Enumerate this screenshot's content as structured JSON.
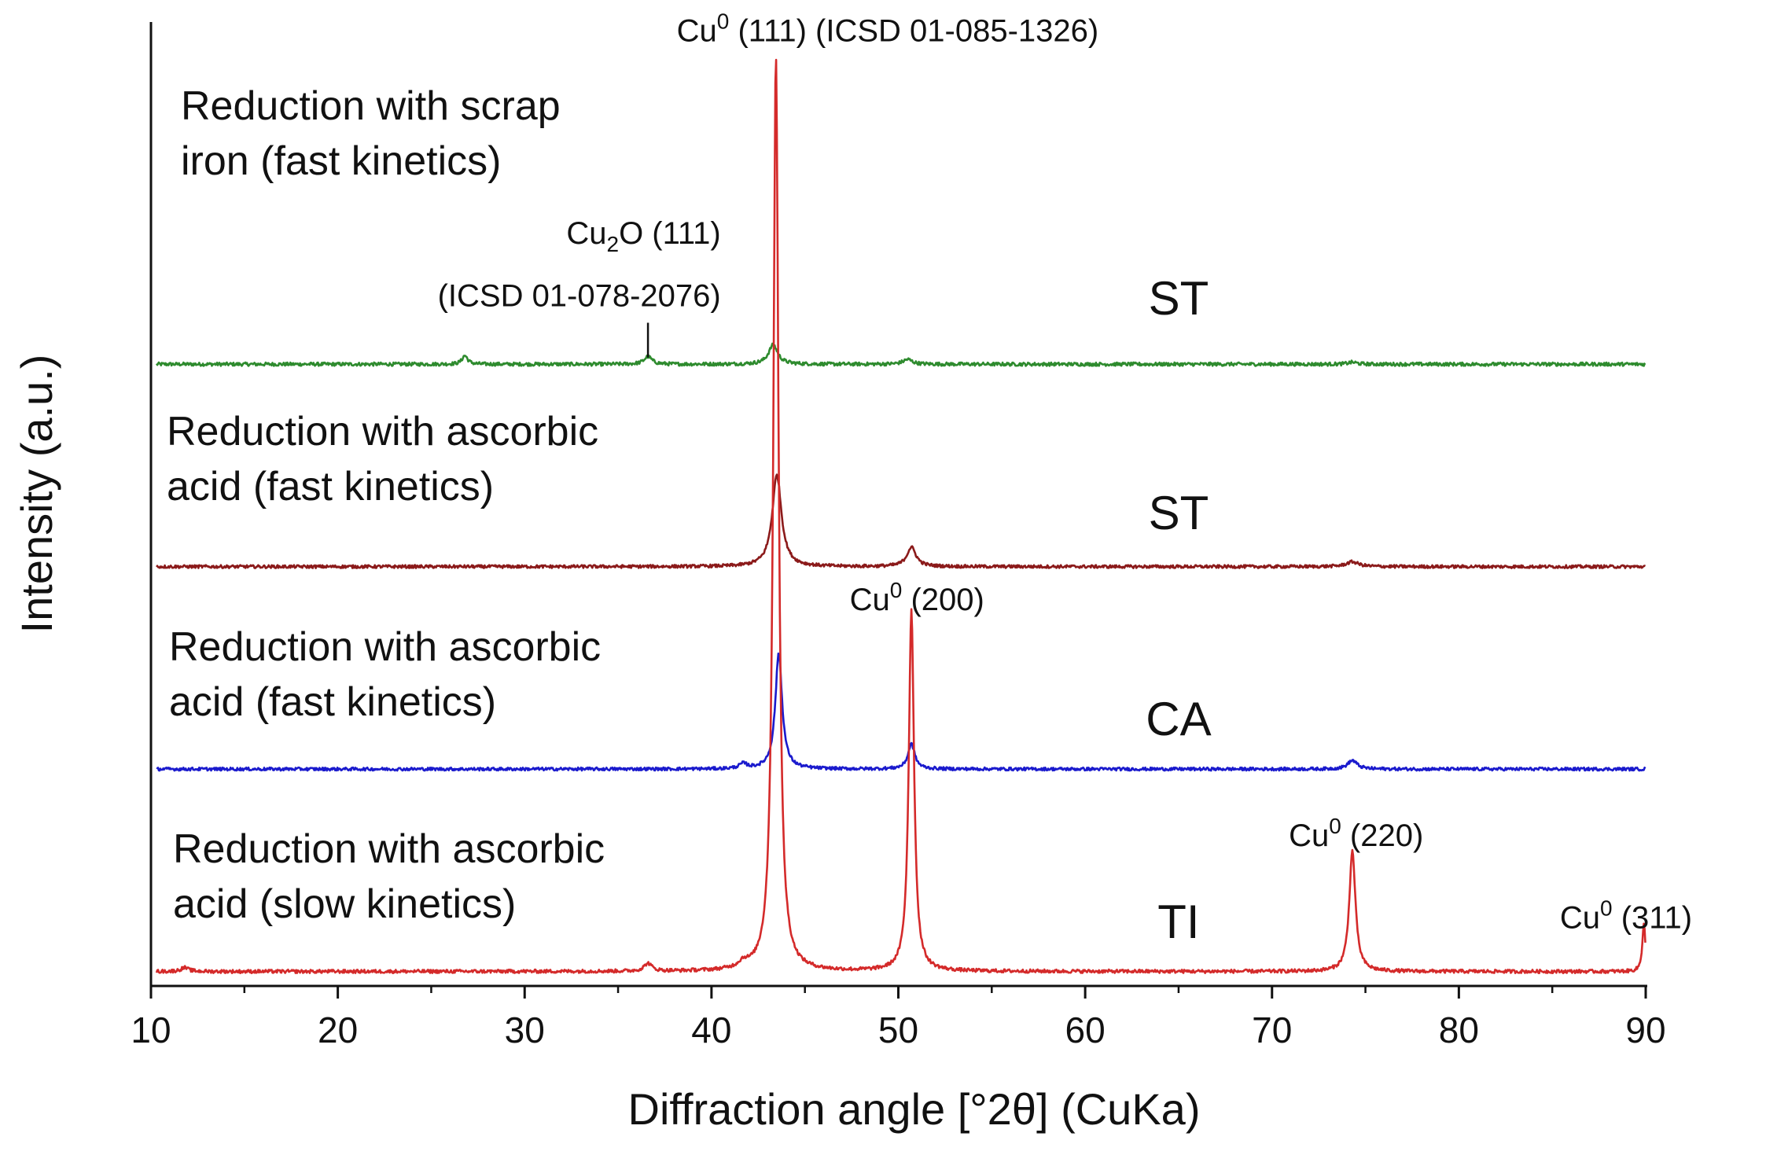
{
  "chart_data": {
    "type": "line",
    "xlabel": "Diffraction angle [°2θ] (CuKa)",
    "ylabel": "Intensity (a.u.)",
    "xlim": [
      10,
      90
    ],
    "ylim": [
      0,
      100
    ],
    "x_ticks": [
      10,
      20,
      30,
      40,
      50,
      60,
      70,
      80,
      90
    ],
    "x_tick_labels": [
      "10",
      "20",
      "30",
      "40",
      "50",
      "60",
      "70",
      "80",
      "90"
    ],
    "series": [
      {
        "name": "Reduction with scrap iron (fast kinetics)",
        "label_lines": [
          "Reduction with scrap",
          "iron (fast kinetics)"
        ],
        "tag": "ST",
        "color": "#2e8b2e",
        "baseline": 64.5,
        "noise": 0.18,
        "peaks": [
          {
            "x": 26.8,
            "height": 0.9,
            "width": 0.18
          },
          {
            "x": 36.6,
            "height": 0.8,
            "width": 0.25
          },
          {
            "x": 43.3,
            "height": 2.0,
            "width": 0.3
          },
          {
            "x": 50.5,
            "height": 0.5,
            "width": 0.3
          },
          {
            "x": 74.3,
            "height": 0.2,
            "width": 0.3
          }
        ]
      },
      {
        "name": "Reduction with ascorbic acid (fast kinetics)",
        "label_lines": [
          "Reduction with ascorbic",
          "acid (fast kinetics)"
        ],
        "tag": "ST",
        "color": "#8b1a1a",
        "baseline": 43.5,
        "noise": 0.16,
        "peaks": [
          {
            "x": 43.5,
            "height": 9.5,
            "width": 0.3
          },
          {
            "x": 50.7,
            "height": 2.0,
            "width": 0.3
          },
          {
            "x": 74.3,
            "height": 0.5,
            "width": 0.4
          }
        ]
      },
      {
        "name": "Reduction with ascorbic acid (fast kinetics)",
        "label_lines": [
          "Reduction with ascorbic",
          "acid (fast kinetics)"
        ],
        "tag": "CA",
        "color": "#1a1acd",
        "baseline": 22.5,
        "noise": 0.16,
        "peaks": [
          {
            "x": 41.7,
            "height": 0.5,
            "width": 0.25
          },
          {
            "x": 43.6,
            "height": 12.0,
            "width": 0.22
          },
          {
            "x": 50.7,
            "height": 2.6,
            "width": 0.22
          },
          {
            "x": 74.3,
            "height": 0.9,
            "width": 0.3
          }
        ]
      },
      {
        "name": "Reduction with ascorbic acid (slow kinetics)",
        "label_lines": [
          "Reduction with ascorbic",
          "acid (slow kinetics)"
        ],
        "tag": "TI",
        "color": "#d42a2a",
        "baseline": 1.5,
        "noise": 0.18,
        "peaks": [
          {
            "x": 11.8,
            "height": 0.4,
            "width": 0.25
          },
          {
            "x": 36.6,
            "height": 0.8,
            "width": 0.25
          },
          {
            "x": 41.7,
            "height": 0.6,
            "width": 0.3
          },
          {
            "x": 43.45,
            "height": 95.0,
            "width": 0.17
          },
          {
            "x": 50.7,
            "height": 37.5,
            "width": 0.17
          },
          {
            "x": 74.3,
            "height": 12.5,
            "width": 0.2
          },
          {
            "x": 89.9,
            "height": 5.0,
            "width": 0.1
          }
        ]
      }
    ],
    "annotations": [
      {
        "text_parts": [
          "Cu",
          "0",
          " (111) (ICSD 01-085-1326)"
        ],
        "sup": true,
        "x": 43.4,
        "y": 98.0
      },
      {
        "text_parts": [
          "Cu",
          "2",
          "O (111)"
        ],
        "sub": true,
        "x": 40.5,
        "y": 77.0
      },
      {
        "text_parts": [
          "(ICSD 01-078-2076)"
        ],
        "x": 40.5,
        "y": 70.5
      },
      {
        "text_parts": [
          "Cu",
          "0",
          " (200)"
        ],
        "sup": true,
        "x": 51.0,
        "y": 39.0
      },
      {
        "text_parts": [
          "Cu",
          "0",
          " (220)"
        ],
        "sup": true,
        "x": 74.5,
        "y": 14.5
      },
      {
        "text_parts": [
          "Cu",
          "0",
          " (311)"
        ],
        "sup": true,
        "x": 90.0,
        "y": 6.0
      }
    ],
    "marker": {
      "x": 36.6,
      "y_from": 65.2,
      "y_to": 68.8
    }
  }
}
